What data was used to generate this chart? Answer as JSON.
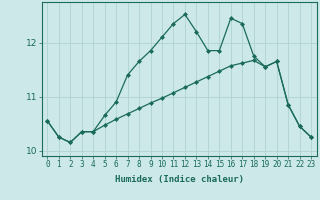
{
  "xlabel": "Humidex (Indice chaleur)",
  "ylabel": "",
  "background_color": "#cce8e8",
  "line_color": "#1a6b5a",
  "x_values": [
    0,
    1,
    2,
    3,
    4,
    5,
    6,
    7,
    8,
    9,
    10,
    11,
    12,
    13,
    14,
    15,
    16,
    17,
    18,
    19,
    20,
    21,
    22,
    23
  ],
  "y_curve1": [
    10.55,
    10.25,
    10.15,
    10.35,
    10.35,
    10.65,
    10.9,
    11.4,
    11.65,
    11.85,
    12.1,
    12.35,
    12.52,
    12.2,
    11.85,
    11.85,
    12.45,
    12.35,
    11.75,
    11.55,
    11.65,
    10.85,
    10.45,
    10.25
  ],
  "y_curve2": [
    10.55,
    10.25,
    10.15,
    10.35,
    10.35,
    10.47,
    10.58,
    10.68,
    10.78,
    10.88,
    10.97,
    11.07,
    11.17,
    11.27,
    11.37,
    11.47,
    11.57,
    11.62,
    11.67,
    11.55,
    11.65,
    10.85,
    10.45,
    10.25
  ],
  "ylim": [
    9.9,
    12.75
  ],
  "yticks": [
    10,
    11,
    12
  ],
  "grid_color": "#aacece",
  "marker": "D",
  "marker_size": 2.0,
  "line_width": 0.9,
  "tick_fontsize": 5.5,
  "xlabel_fontsize": 6.5
}
